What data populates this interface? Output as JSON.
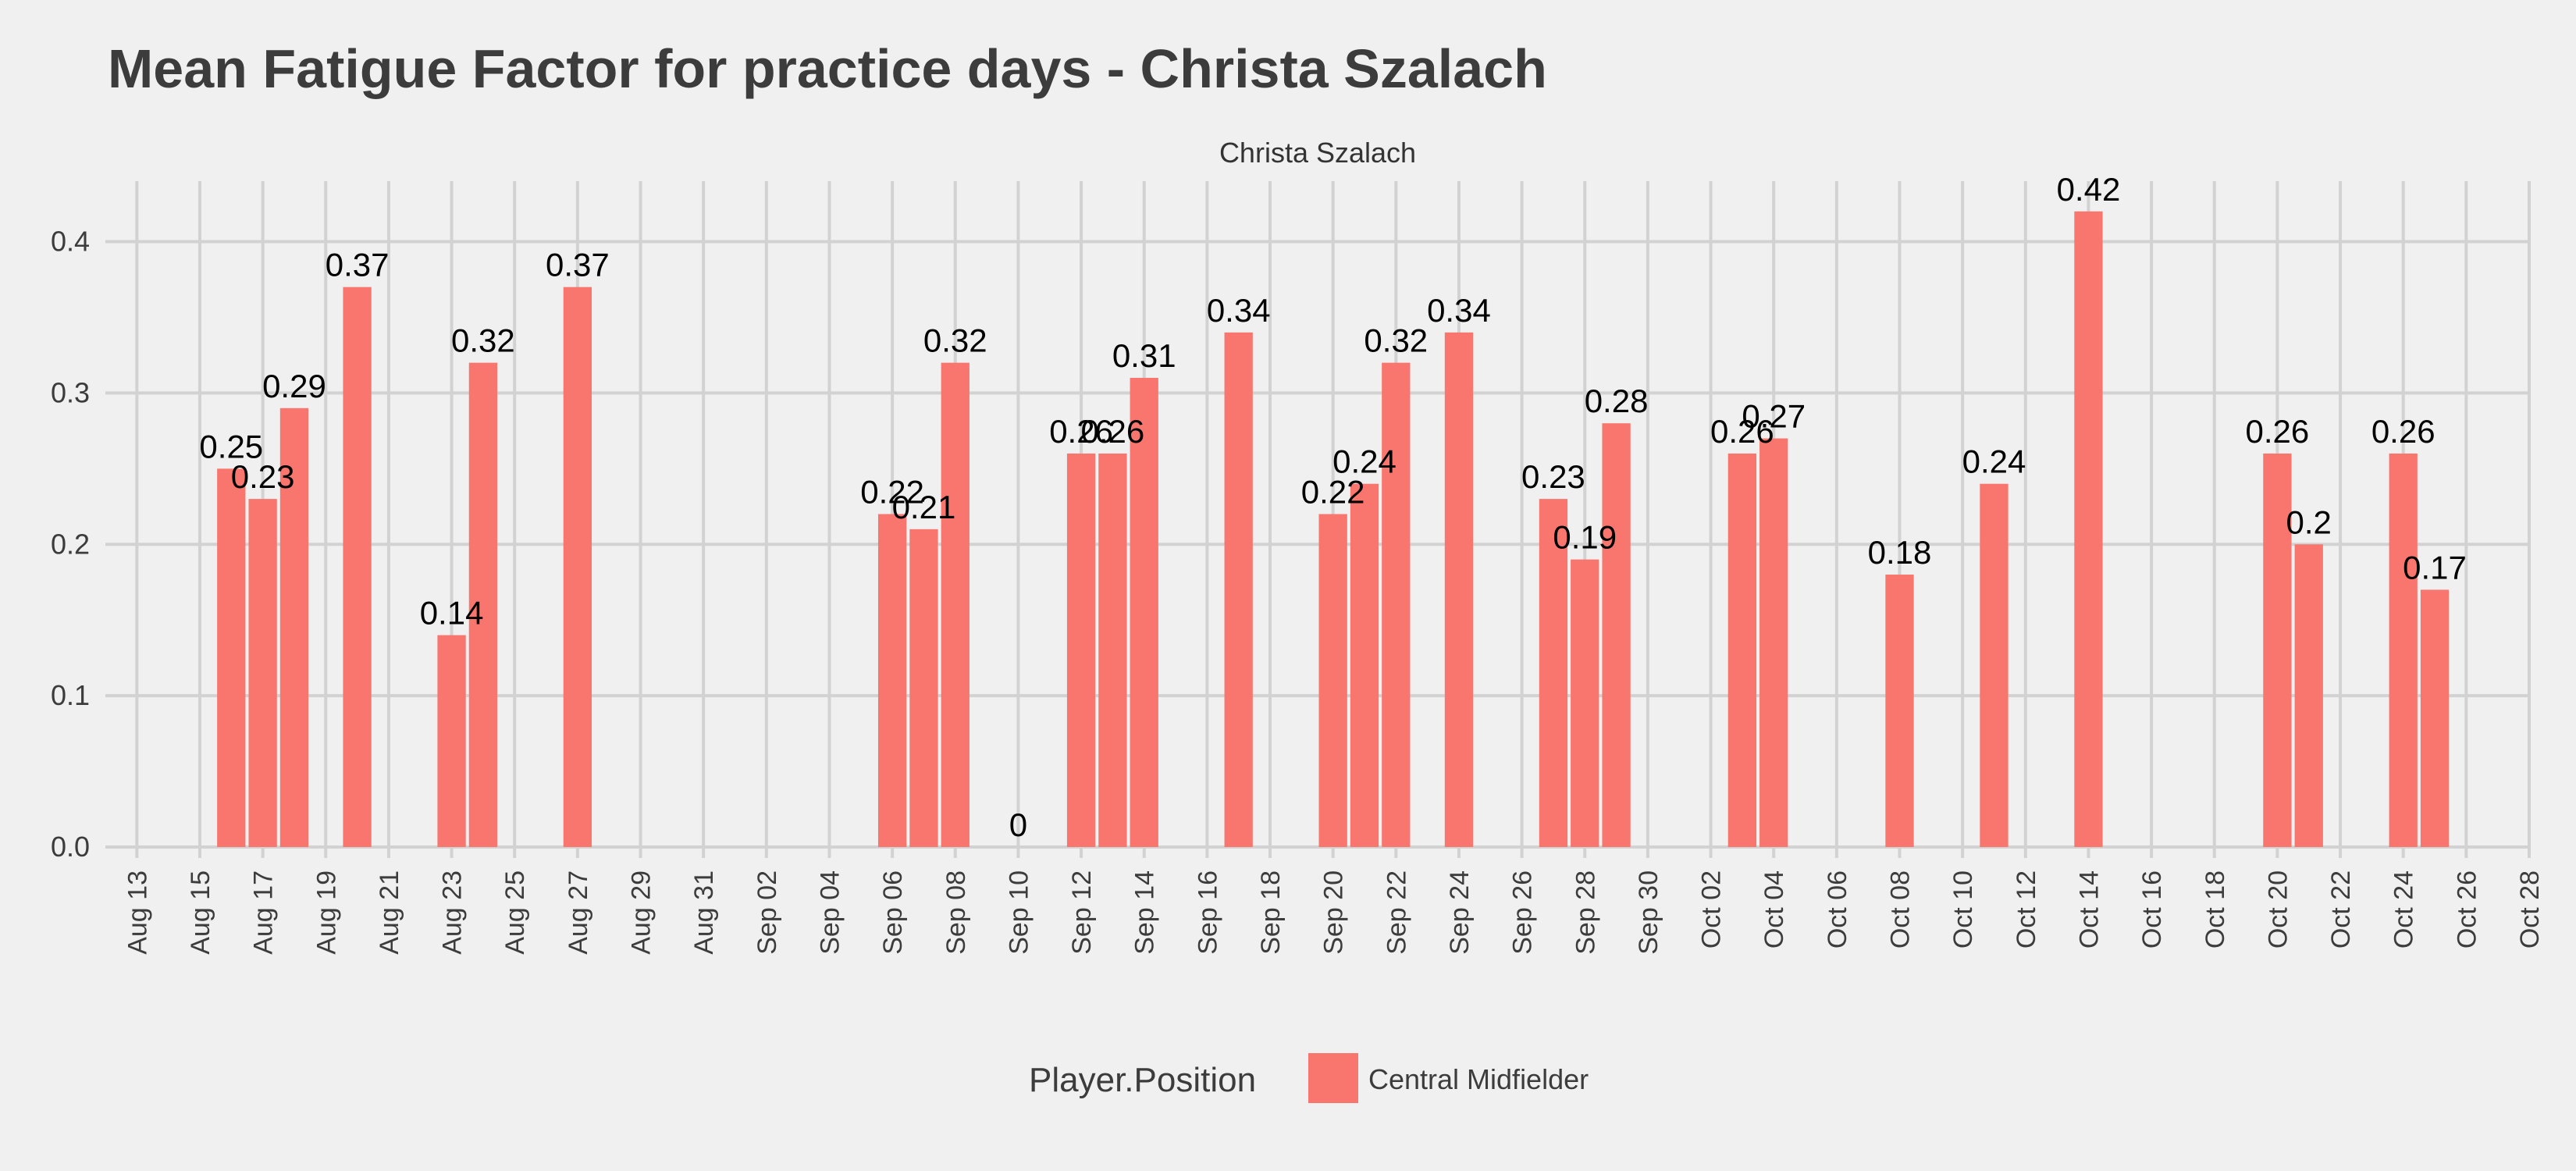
{
  "chart_data": {
    "type": "bar",
    "title": "Mean Fatigue Factor for practice days -  Christa Szalach",
    "facet_label": "Christa Szalach",
    "xlabel": "",
    "ylabel": "",
    "ylim": [
      0,
      0.44
    ],
    "yticks": [
      "0.0",
      "0.1",
      "0.2",
      "0.3",
      "0.4"
    ],
    "x_date_range": [
      "2017-08-12",
      "2017-10-28"
    ],
    "xtick_labels": [
      "Aug 13",
      "Aug 15",
      "Aug 17",
      "Aug 19",
      "Aug 21",
      "Aug 23",
      "Aug 25",
      "Aug 27",
      "Aug 29",
      "Aug 31",
      "Sep 02",
      "Sep 04",
      "Sep 06",
      "Sep 08",
      "Sep 10",
      "Sep 12",
      "Sep 14",
      "Sep 16",
      "Sep 18",
      "Sep 20",
      "Sep 22",
      "Sep 24",
      "Sep 26",
      "Sep 28",
      "Sep 30",
      "Oct 02",
      "Oct 04",
      "Oct 06",
      "Oct 08",
      "Oct 10",
      "Oct 12",
      "Oct 14",
      "Oct 16",
      "Oct 18",
      "Oct 20",
      "Oct 22",
      "Oct 24",
      "Oct 26",
      "Oct 28"
    ],
    "grid": true,
    "legend": {
      "title": "Player.Position",
      "entries": [
        "Central Midfielder"
      ],
      "placement": "bottom"
    },
    "bar_color": "#F8766D",
    "series": [
      {
        "name": "Central Midfielder",
        "points": [
          {
            "date": "Aug 16",
            "value": 0.25,
            "label": "0.25"
          },
          {
            "date": "Aug 17",
            "value": 0.23,
            "label": "0.23"
          },
          {
            "date": "Aug 18",
            "value": 0.29,
            "label": "0.29"
          },
          {
            "date": "Aug 20",
            "value": 0.37,
            "label": "0.37"
          },
          {
            "date": "Aug 23",
            "value": 0.14,
            "label": "0.14"
          },
          {
            "date": "Aug 24",
            "value": 0.32,
            "label": "0.32"
          },
          {
            "date": "Aug 27",
            "value": 0.37,
            "label": "0.37"
          },
          {
            "date": "Sep 06",
            "value": 0.22,
            "label": "0.22"
          },
          {
            "date": "Sep 07",
            "value": 0.21,
            "label": "0.21"
          },
          {
            "date": "Sep 08",
            "value": 0.32,
            "label": "0.32"
          },
          {
            "date": "Sep 10",
            "value": 0.0,
            "label": "0"
          },
          {
            "date": "Sep 12",
            "value": 0.26,
            "label": "0.26"
          },
          {
            "date": "Sep 13",
            "value": 0.26,
            "label": "0.26"
          },
          {
            "date": "Sep 14",
            "value": 0.31,
            "label": "0.31"
          },
          {
            "date": "Sep 17",
            "value": 0.34,
            "label": "0.34"
          },
          {
            "date": "Sep 20",
            "value": 0.22,
            "label": "0.22"
          },
          {
            "date": "Sep 21",
            "value": 0.24,
            "label": "0.24"
          },
          {
            "date": "Sep 22",
            "value": 0.32,
            "label": "0.32"
          },
          {
            "date": "Sep 24",
            "value": 0.34,
            "label": "0.34"
          },
          {
            "date": "Sep 27",
            "value": 0.23,
            "label": "0.23"
          },
          {
            "date": "Sep 28",
            "value": 0.19,
            "label": "0.19"
          },
          {
            "date": "Sep 29",
            "value": 0.28,
            "label": "0.28"
          },
          {
            "date": "Oct 03",
            "value": 0.26,
            "label": "0.26"
          },
          {
            "date": "Oct 04",
            "value": 0.27,
            "label": "0.27"
          },
          {
            "date": "Oct 08",
            "value": 0.18,
            "label": "0.18"
          },
          {
            "date": "Oct 11",
            "value": 0.24,
            "label": "0.24"
          },
          {
            "date": "Oct 14",
            "value": 0.42,
            "label": "0.42"
          },
          {
            "date": "Oct 20",
            "value": 0.26,
            "label": "0.26"
          },
          {
            "date": "Oct 21",
            "value": 0.2,
            "label": "0.2"
          },
          {
            "date": "Oct 24",
            "value": 0.26,
            "label": "0.26"
          },
          {
            "date": "Oct 25",
            "value": 0.17,
            "label": "0.17"
          }
        ]
      }
    ]
  }
}
